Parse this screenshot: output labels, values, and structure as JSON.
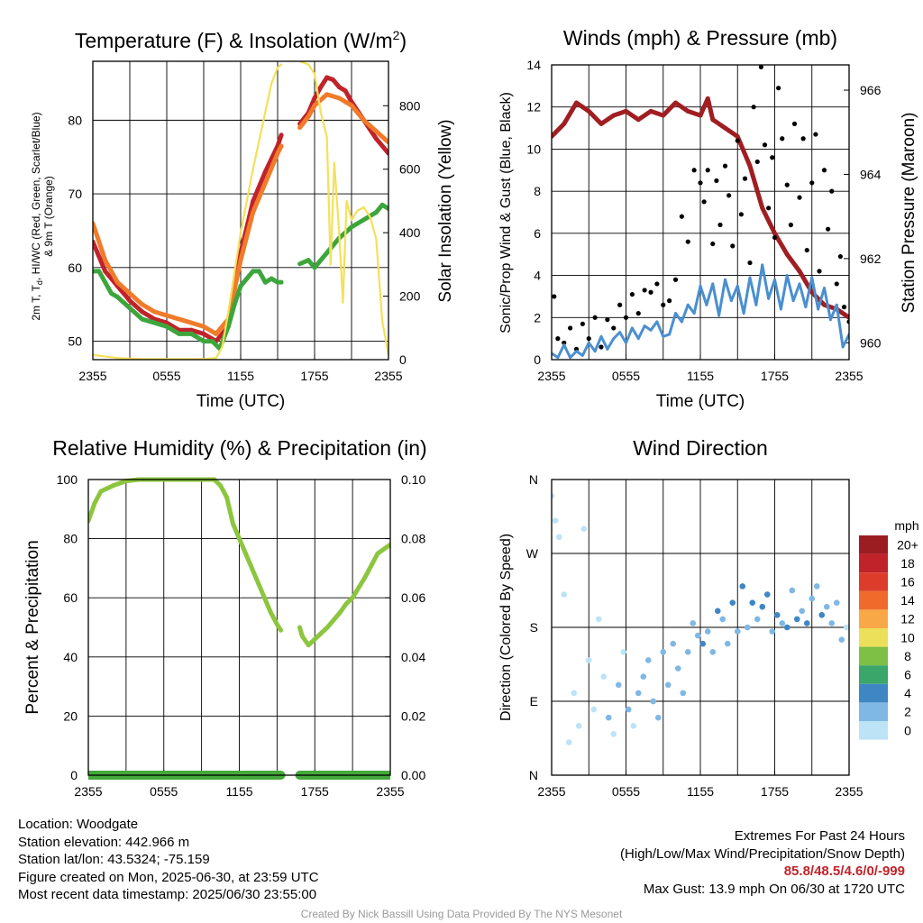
{
  "chart_data": [
    {
      "type": "line",
      "title": "Temperature (F) & Insolation (W/m",
      "title_sup": "2",
      "title_tail": ")",
      "xlabel": "Time (UTC)",
      "ylabel_left_line1": "2m T, T",
      "ylabel_left_sub": "d",
      "ylabel_left_line1_tail": ", HI/WC (Red, Green, Scarlet/Blue)",
      "ylabel_left_line2": "& 9m T (Orange)",
      "ylabel_right": "Solar Insolation (Yellow)",
      "x_ticks": [
        "2355",
        "0555",
        "1155",
        "1755",
        "2355"
      ],
      "x_range_hours": [
        0,
        24
      ],
      "ylim_left": [
        47.5,
        88
      ],
      "y_ticks_left": [
        50,
        60,
        70,
        80
      ],
      "ylim_right": [
        0,
        940
      ],
      "y_ticks_right": [
        0,
        200,
        400,
        600,
        800
      ],
      "grid": true,
      "series": [
        {
          "role": "2m T",
          "color": "#c0232a",
          "axis": "left",
          "gaps": [
            [
              15.3,
              16.8
            ]
          ],
          "x": [
            0,
            1,
            2,
            3,
            4,
            5,
            6,
            7,
            8,
            9,
            10,
            11,
            12,
            13,
            14,
            15,
            15.3,
            16.8,
            17.5,
            18,
            18.5,
            19,
            19.5,
            20,
            20.5,
            21,
            22,
            23,
            24
          ],
          "y": [
            63.5,
            59.5,
            57.5,
            55.5,
            54,
            53,
            52.5,
            51.5,
            51.5,
            51,
            50,
            52,
            62,
            69,
            73,
            76.5,
            78,
            79.5,
            81,
            83,
            84.5,
            85.8,
            85.5,
            84.5,
            84,
            82.5,
            80,
            77.5,
            75.5
          ]
        },
        {
          "role": "9m T",
          "color": "#f07b2a",
          "axis": "left",
          "gaps": [
            [
              15.3,
              16.8
            ]
          ],
          "x": [
            0,
            1,
            2,
            3,
            4,
            5,
            6,
            7,
            8,
            9,
            10,
            11,
            12,
            13,
            14,
            15,
            15.3,
            16.8,
            17.5,
            18,
            19,
            20,
            21,
            22,
            23,
            24
          ],
          "y": [
            66,
            61,
            58,
            56.5,
            55,
            54,
            53.5,
            53,
            52.5,
            52,
            51,
            53,
            61,
            67.5,
            71.5,
            75.5,
            76.5,
            79,
            80.5,
            82,
            83.5,
            83,
            82,
            80,
            78.5,
            77
          ]
        },
        {
          "role": "T_d",
          "color": "#3ca63c",
          "axis": "left",
          "gaps": [
            [
              15.3,
              16.8
            ]
          ],
          "x": [
            0,
            0.5,
            1,
            1.5,
            2,
            3,
            4,
            5,
            6,
            7,
            8,
            9,
            9.7,
            10.3,
            11,
            11.5,
            12,
            12.5,
            13,
            13.5,
            14,
            14.5,
            15,
            15.3,
            16.8,
            17.5,
            18,
            19,
            20,
            21,
            22,
            23,
            23.5,
            24
          ],
          "y": [
            59.5,
            59.5,
            58,
            56.5,
            56,
            54.5,
            53,
            52.5,
            52,
            51,
            51,
            50,
            50,
            49,
            52,
            55,
            57.5,
            58.5,
            59.5,
            59.5,
            58,
            58.5,
            58,
            58,
            60.5,
            61,
            60,
            62,
            64,
            65.5,
            66.5,
            67.5,
            68.5,
            68
          ]
        },
        {
          "role": "Insolation",
          "color": "#f5e05a",
          "axis": "right",
          "gaps": [
            [
              15.3,
              16.8
            ]
          ],
          "x": [
            0,
            2,
            4,
            6,
            8,
            9,
            10,
            10.5,
            11,
            12,
            13,
            14,
            14.5,
            15,
            15.3,
            16.8,
            17.5,
            18,
            18.5,
            19,
            19.3,
            19.6,
            20,
            20.3,
            20.6,
            21,
            21.5,
            22,
            22.5,
            23,
            23.5,
            24
          ],
          "y": [
            15,
            5,
            2,
            2,
            2,
            2,
            5,
            40,
            150,
            400,
            600,
            780,
            870,
            920,
            930,
            940,
            930,
            900,
            780,
            700,
            300,
            620,
            400,
            180,
            500,
            440,
            470,
            480,
            450,
            380,
            120,
            15
          ]
        }
      ]
    },
    {
      "type": "scatter",
      "title": "Winds (mph) & Pressure (mb)",
      "xlabel": "Time (UTC)",
      "ylabel_left": "Sonic/Prop Wind & Gust (Blue, Black)",
      "ylabel_right": "Station Pressure (Maroon)",
      "x_ticks": [
        "2355",
        "0555",
        "1155",
        "1755",
        "2355"
      ],
      "x_range_hours": [
        0,
        24
      ],
      "ylim_left": [
        0,
        14
      ],
      "y_ticks_left": [
        0,
        2,
        4,
        6,
        8,
        10,
        12,
        14
      ],
      "ylim_right": [
        959.6,
        966.6
      ],
      "y_ticks_right": [
        960,
        962,
        964,
        966
      ],
      "grid": true,
      "series": [
        {
          "role": "Pressure",
          "color": "#a01e22",
          "axis": "right",
          "render": "line",
          "x": [
            0,
            1,
            2,
            2.5,
            3,
            4,
            5,
            6,
            7,
            8,
            9,
            10,
            11,
            12,
            12.6,
            13,
            14,
            15,
            16,
            17,
            18,
            19,
            20,
            21,
            22,
            23,
            24
          ],
          "y": [
            964.9,
            965.2,
            965.7,
            965.6,
            965.5,
            965.2,
            965.4,
            965.5,
            965.3,
            965.5,
            965.4,
            965.7,
            965.5,
            965.4,
            965.8,
            965.3,
            965.1,
            964.9,
            964.2,
            963.2,
            962.6,
            962.1,
            961.7,
            961.2,
            960.9,
            960.8,
            960.6
          ]
        },
        {
          "role": "Gust",
          "color": "#000000",
          "axis": "left",
          "render": "points",
          "x": [
            0.2,
            0.5,
            1,
            1.5,
            2,
            2.5,
            3,
            3.5,
            4,
            4.5,
            5,
            5.5,
            6,
            6.5,
            7,
            7.5,
            8,
            8.5,
            9,
            9.5,
            10,
            10.5,
            11,
            11.5,
            12,
            12.3,
            12.6,
            13,
            13.3,
            13.6,
            14,
            14.3,
            14.6,
            15,
            15.3,
            15.6,
            16,
            16.3,
            16.6,
            16.9,
            17.2,
            17.5,
            17.8,
            18,
            18.3,
            18.6,
            19,
            19.3,
            19.6,
            20,
            20.3,
            20.6,
            21,
            21.3,
            21.6,
            22,
            22.3,
            22.6,
            23,
            23.3,
            23.6,
            24
          ],
          "y": [
            3,
            1,
            0.8,
            1.5,
            0.5,
            1.7,
            1,
            2,
            0.6,
            1.9,
            1.5,
            2.6,
            2,
            3.1,
            2.2,
            3.3,
            3.2,
            3.6,
            2.6,
            2.8,
            3.8,
            6.8,
            5.6,
            9,
            8.4,
            7.5,
            9,
            5.5,
            8.5,
            6.4,
            9.2,
            7.8,
            5.4,
            10.4,
            6.9,
            8.6,
            4.6,
            12,
            9.4,
            13.9,
            10.2,
            7.2,
            9.6,
            5.8,
            12.9,
            10.5,
            8.3,
            6.4,
            11.2,
            7.7,
            10.5,
            5.2,
            8.4,
            10.7,
            4.2,
            9,
            6.2,
            8,
            3.6,
            4.9,
            2.5,
            1.8
          ]
        },
        {
          "role": "Sonic Wind",
          "color": "#4a8fd0",
          "axis": "left",
          "render": "line",
          "x": [
            0,
            0.5,
            1,
            1.5,
            2,
            2.5,
            3,
            3.5,
            4,
            4.5,
            5,
            5.5,
            6,
            6.5,
            7,
            7.5,
            8,
            8.5,
            9,
            9.5,
            10,
            10.5,
            11,
            11.5,
            12,
            12.5,
            13,
            13.5,
            14,
            14.5,
            15,
            15.5,
            16,
            16.5,
            17,
            17.5,
            18,
            18.5,
            19,
            19.5,
            20,
            20.5,
            21,
            21.5,
            22,
            22.5,
            23,
            23.5,
            24
          ],
          "y": [
            0.3,
            0.1,
            0.7,
            0.1,
            0.4,
            0.2,
            0.8,
            0.4,
            1.1,
            0.5,
            1,
            1.3,
            0.8,
            1.5,
            1,
            1.6,
            1.4,
            1.8,
            1.1,
            1.2,
            2.2,
            1.8,
            2.6,
            2.2,
            3.5,
            2.6,
            3.6,
            2.1,
            3.8,
            2.8,
            3.5,
            2.2,
            3.9,
            2.6,
            4.5,
            2.9,
            3.8,
            2.4,
            4,
            2.8,
            3.6,
            2.5,
            3.9,
            2.4,
            3.4,
            1.9,
            2.6,
            0.6,
            1.2
          ]
        }
      ]
    },
    {
      "type": "line",
      "title": "Relative Humidity (%) & Precipitation (in)",
      "ylabel_left": "Percent & Precipitation",
      "x_ticks": [
        "2355",
        "0555",
        "1155",
        "1755",
        "2355"
      ],
      "x_range_hours": [
        0,
        24
      ],
      "ylim_left": [
        0,
        100
      ],
      "y_ticks_left": [
        0,
        20,
        40,
        60,
        80,
        100
      ],
      "ylim_right": [
        0,
        0.1
      ],
      "y_ticks_right": [
        "0.00",
        "0.02",
        "0.04",
        "0.06",
        "0.08",
        "0.10"
      ],
      "grid": true,
      "series": [
        {
          "role": "RH",
          "color": "#8cc63f",
          "axis": "left",
          "gaps": [
            [
              15.3,
              16.8
            ]
          ],
          "x": [
            0,
            0.5,
            1,
            2,
            3,
            4,
            5,
            6,
            7,
            8,
            9,
            10,
            10.5,
            11,
            11.5,
            12,
            12.5,
            13,
            13.5,
            14,
            14.5,
            15,
            15.3,
            16.8,
            17,
            17.5,
            18,
            19,
            20,
            20.5,
            21,
            22,
            23,
            24
          ],
          "y": [
            86,
            92,
            96,
            98,
            99.5,
            100,
            100,
            100,
            100,
            100,
            100,
            100,
            98,
            94,
            85,
            80,
            75,
            70,
            65,
            60,
            55,
            51,
            49,
            50,
            47,
            44,
            46,
            50,
            55,
            58,
            60,
            67,
            75,
            78
          ]
        },
        {
          "role": "Precipitation",
          "color": "#44a83c",
          "axis": "right",
          "gaps": [
            [
              15.3,
              16.8
            ]
          ],
          "x": [
            0,
            15.3,
            16.8,
            24
          ],
          "y": [
            0,
            0,
            0,
            0
          ]
        }
      ]
    },
    {
      "type": "scatter",
      "title": "Wind Direction",
      "ylabel_left": "Direction (Colored By Speed)",
      "x_ticks": [
        "2355",
        "0555",
        "1155",
        "1755",
        "2355"
      ],
      "x_range_hours": [
        0,
        24
      ],
      "y_range_deg": [
        0,
        360
      ],
      "y_ticks": [
        {
          "label": "N",
          "deg": 0
        },
        {
          "label": "E",
          "deg": 90
        },
        {
          "label": "S",
          "deg": 180
        },
        {
          "label": "W",
          "deg": 270
        },
        {
          "label": "N",
          "deg": 360
        }
      ],
      "grid": true,
      "legend_title": "mph",
      "legend_labels": [
        "20+",
        "18",
        "16",
        "14",
        "12",
        "10",
        "8",
        "6",
        "4",
        "2",
        "0"
      ],
      "legend_colors": [
        "#9c1d21",
        "#c0232a",
        "#dd3c2b",
        "#f06a2c",
        "#f9a848",
        "#ece05a",
        "#7ebf46",
        "#3aa66a",
        "#3f87c4",
        "#7fb8e4",
        "#bde3f7"
      ],
      "points": {
        "x": [
          0,
          0.3,
          0.6,
          1,
          1.4,
          1.8,
          2.2,
          2.6,
          3,
          3.4,
          3.8,
          4.2,
          4.6,
          5,
          5.4,
          5.8,
          6.2,
          6.6,
          7,
          7.4,
          7.8,
          8.2,
          8.6,
          9,
          9.4,
          9.8,
          10.2,
          10.6,
          11,
          11.4,
          11.8,
          12.2,
          12.6,
          13,
          13.4,
          13.8,
          14.2,
          14.6,
          15,
          15.4,
          15.8,
          16.2,
          16.6,
          17,
          17.4,
          17.8,
          18.2,
          18.6,
          19,
          19.4,
          19.8,
          20.2,
          20.6,
          21,
          21.4,
          21.8,
          22.2,
          22.6,
          23,
          23.4,
          23.8
        ],
        "deg": [
          340,
          310,
          290,
          220,
          40,
          100,
          60,
          300,
          140,
          80,
          190,
          120,
          70,
          50,
          110,
          150,
          80,
          60,
          100,
          120,
          140,
          90,
          70,
          150,
          110,
          160,
          130,
          100,
          150,
          185,
          170,
          160,
          175,
          150,
          200,
          190,
          160,
          210,
          175,
          230,
          180,
          210,
          190,
          205,
          220,
          175,
          195,
          185,
          180,
          225,
          190,
          200,
          185,
          215,
          230,
          195,
          205,
          185,
          210,
          165,
          180
        ],
        "speed_mph": [
          0.5,
          0.5,
          1,
          1,
          0.5,
          1,
          1,
          0.5,
          1,
          1.5,
          1,
          1.5,
          2,
          1.5,
          2,
          1,
          2,
          1.5,
          2,
          2.5,
          2,
          3,
          2,
          2.5,
          3,
          2.5,
          3,
          2.5,
          3,
          3.5,
          3,
          4,
          3.5,
          3,
          4,
          3.5,
          3,
          4,
          3.5,
          4.5,
          3,
          4,
          3.5,
          4,
          4.5,
          3,
          4,
          3.5,
          4.5,
          3.5,
          4,
          3,
          4.5,
          3.5,
          3,
          4,
          3.5,
          2.5,
          3,
          2,
          1.5
        ]
      }
    }
  ],
  "info": {
    "location": "Location: Woodgate",
    "elevation": "Station elevation: 442.966 m",
    "latlon": "Station lat/lon: 43.5324; -75.159",
    "created": "Figure created on Mon, 2025-06-30, at 23:59 UTC",
    "recent": "Most recent data timestamp: 2025/06/30 23:55:00"
  },
  "extremes": {
    "title": "Extremes For Past 24 Hours",
    "subtitle": "(High/Low/Max Wind/Precipitation/Snow Depth)",
    "values": "85.8/48.5/4.6/0/-999",
    "max_gust": "Max Gust: 13.9 mph On 06/30 at 1720 UTC"
  },
  "credit": "Created By Nick Bassill Using Data Provided By The NYS Mesonet"
}
